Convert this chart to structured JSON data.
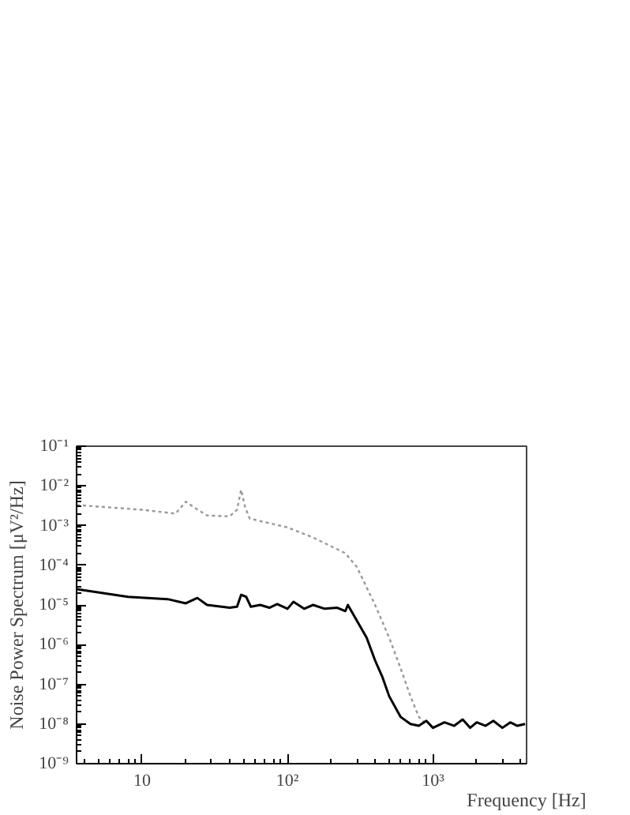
{
  "chart_data": {
    "type": "line",
    "xlabel": "Frequency [Hz]",
    "ylabel": "Noise Power Spectrum [μV²/Hz]",
    "log": "xy",
    "grid": false,
    "xlim": [
      3.55,
      4400
    ],
    "ylim": [
      1e-09,
      0.1
    ],
    "xticks": [
      {
        "value": 10,
        "label": "10"
      },
      {
        "value": 100,
        "label": "10²"
      },
      {
        "value": 1000,
        "label": "10³"
      }
    ],
    "yticks": [
      {
        "value": 1e-09,
        "label": "10⁻⁹"
      },
      {
        "value": 1e-08,
        "label": "10⁻⁸"
      },
      {
        "value": 1e-07,
        "label": "10⁻⁷"
      },
      {
        "value": 1e-06,
        "label": "10⁻⁶"
      },
      {
        "value": 1e-05,
        "label": "10⁻⁵"
      },
      {
        "value": 0.0001,
        "label": "10⁻⁴"
      },
      {
        "value": 0.001,
        "label": "10⁻³"
      },
      {
        "value": 0.01,
        "label": "10⁻²"
      },
      {
        "value": 0.1,
        "label": "10⁻¹"
      }
    ],
    "series": [
      {
        "color": "#999999",
        "line_style": "dotted",
        "x": [
          3.55,
          10,
          17,
          20,
          23,
          28,
          40,
          45,
          48,
          51,
          55,
          100,
          150,
          250,
          300,
          400,
          500,
          600,
          700,
          800,
          900
        ],
        "values": [
          0.0033,
          0.0025,
          0.002,
          0.004,
          0.0028,
          0.0018,
          0.0017,
          0.0025,
          0.008,
          0.003,
          0.0015,
          0.0009,
          0.0005,
          0.0002,
          9e-05,
          1e-05,
          1.5e-06,
          2.5e-07,
          5e-08,
          1.5e-08,
          1e-08
        ]
      },
      {
        "color": "#000000",
        "line_style": "solid",
        "x": [
          3.55,
          8,
          15,
          20,
          24,
          28,
          40,
          45,
          48,
          52,
          56,
          65,
          75,
          85,
          100,
          110,
          130,
          150,
          180,
          220,
          250,
          260,
          300,
          350,
          400,
          450,
          500,
          600,
          700,
          800,
          900,
          1000,
          1200,
          1400,
          1600,
          1800,
          2000,
          2300,
          2600,
          3000,
          3400,
          3800,
          4300
        ],
        "values": [
          2.5e-05,
          1.6e-05,
          1.4e-05,
          1.1e-05,
          1.5e-05,
          1e-05,
          8.5e-06,
          9e-06,
          1.8e-05,
          1.6e-05,
          9e-06,
          1e-05,
          8.5e-06,
          1.05e-05,
          8e-06,
          1.2e-05,
          8e-06,
          1e-05,
          8e-06,
          8.5e-06,
          7e-06,
          1e-05,
          4e-06,
          1.5e-06,
          4e-07,
          1.5e-07,
          5e-08,
          1.5e-08,
          1e-08,
          9e-09,
          1.2e-08,
          8e-09,
          1.1e-08,
          9e-09,
          1.3e-08,
          8e-09,
          1.1e-08,
          9e-09,
          1.2e-08,
          8e-09,
          1.1e-08,
          9e-09,
          1e-08
        ]
      }
    ]
  }
}
